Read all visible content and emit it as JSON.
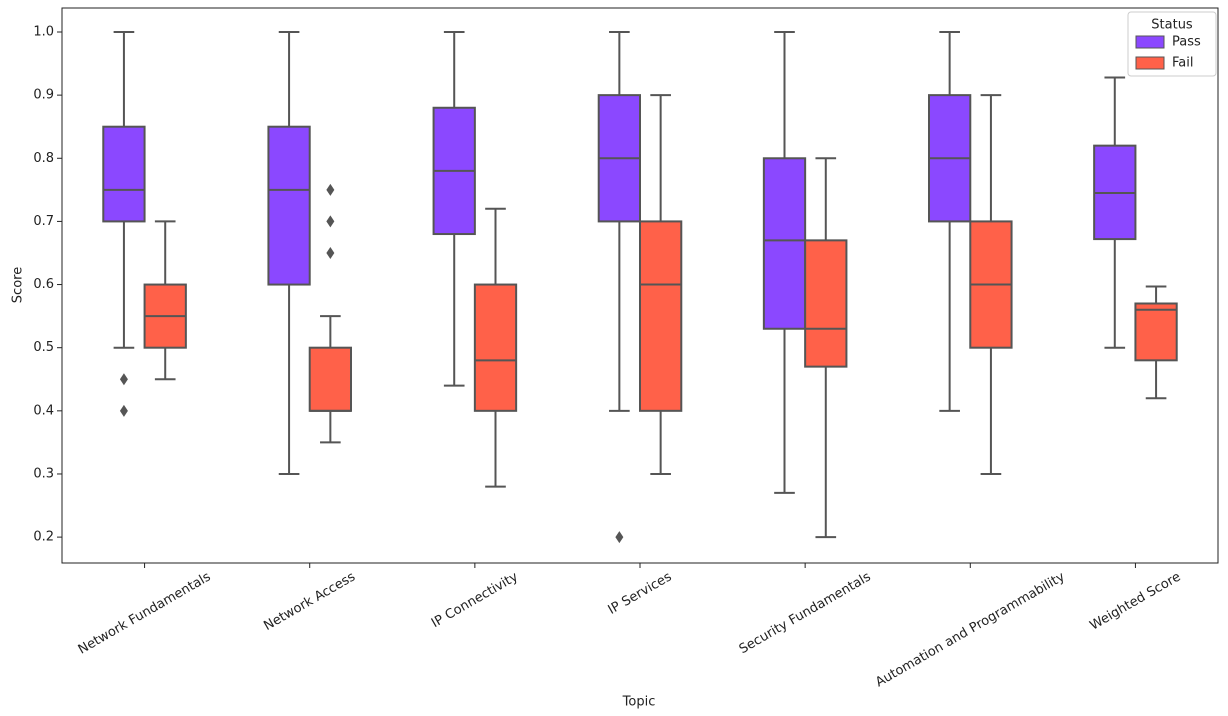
{
  "chart_data": {
    "type": "box",
    "x_label": "Topic",
    "y_label": "Score",
    "categories": [
      "Network Fundamentals",
      "Network Access",
      "IP Connectivity",
      "IP Services",
      "Security Fundamentals",
      "Automation and Programmability",
      "Weighted Score"
    ],
    "legend_title": "Status",
    "legend": "upper right",
    "ylim": [
      0.159,
      1.038
    ],
    "yticks": [
      0.2,
      0.3,
      0.4,
      0.5,
      0.6,
      0.7,
      0.8,
      0.9,
      {
        "value": 1,
        "label": "1.0"
      }
    ],
    "series": [
      {
        "name": "Pass",
        "color": "#8b48ff",
        "boxes": [
          {
            "min": 0.5,
            "q1": 0.7,
            "median": 0.75,
            "q3": 0.85,
            "max": 1.0,
            "outliers": [
              0.45,
              0.4
            ]
          },
          {
            "min": 0.3,
            "q1": 0.6,
            "median": 0.75,
            "q3": 0.85,
            "max": 1.0,
            "outliers": []
          },
          {
            "min": 0.44,
            "q1": 0.68,
            "median": 0.78,
            "q3": 0.88,
            "max": 1.0,
            "outliers": []
          },
          {
            "min": 0.4,
            "q1": 0.7,
            "median": 0.8,
            "q3": 0.9,
            "max": 1.0,
            "outliers": [
              0.2
            ]
          },
          {
            "min": 0.27,
            "q1": 0.53,
            "median": 0.67,
            "q3": 0.8,
            "max": 1.0,
            "outliers": []
          },
          {
            "min": 0.4,
            "q1": 0.7,
            "median": 0.8,
            "q3": 0.9,
            "max": 1.0,
            "outliers": []
          },
          {
            "min": 0.5,
            "q1": 0.672,
            "median": 0.745,
            "q3": 0.82,
            "max": 0.928,
            "outliers": []
          }
        ]
      },
      {
        "name": "Fail",
        "color": "#ff6149",
        "boxes": [
          {
            "min": 0.45,
            "q1": 0.5,
            "median": 0.55,
            "q3": 0.6,
            "max": 0.7,
            "outliers": []
          },
          {
            "min": 0.35,
            "q1": 0.4,
            "median": 0.4,
            "q3": 0.5,
            "max": 0.55,
            "outliers": [
              0.75,
              0.7,
              0.65
            ]
          },
          {
            "min": 0.28,
            "q1": 0.4,
            "median": 0.48,
            "q3": 0.6,
            "max": 0.72,
            "outliers": []
          },
          {
            "min": 0.3,
            "q1": 0.4,
            "median": 0.6,
            "q3": 0.7,
            "max": 0.9,
            "outliers": []
          },
          {
            "min": 0.2,
            "q1": 0.47,
            "median": 0.53,
            "q3": 0.67,
            "max": 0.8,
            "outliers": []
          },
          {
            "min": 0.3,
            "q1": 0.5,
            "median": 0.6,
            "q3": 0.7,
            "max": 0.9,
            "outliers": []
          },
          {
            "min": 0.42,
            "q1": 0.48,
            "median": 0.56,
            "q3": 0.57,
            "max": 0.597,
            "outliers": []
          }
        ]
      }
    ]
  }
}
